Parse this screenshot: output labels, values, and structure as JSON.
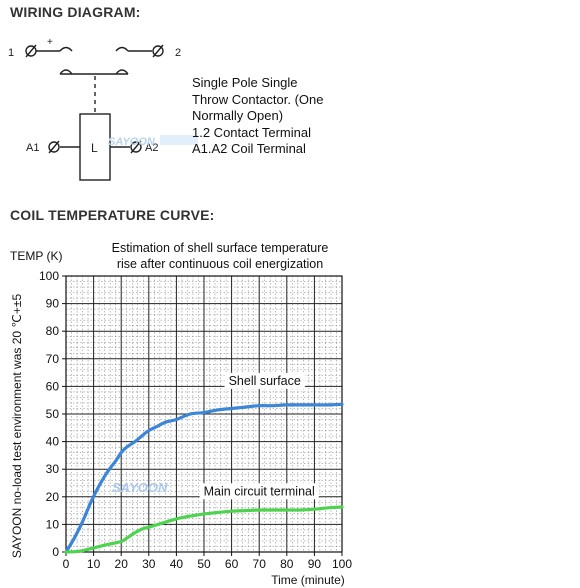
{
  "wiring": {
    "heading": "WIRING DIAGRAM:",
    "terminal_1": "1",
    "terminal_2": "2",
    "plus": "+",
    "coil_label": "L",
    "coil_a1": "A1",
    "coil_a2": "A2",
    "description": [
      "Single Pole Single",
      "Throw Contactor. (One",
      "Normally Open)",
      "1.2 Contact Terminal",
      "A1.A2 Coil Terminal"
    ],
    "watermark": "SAYOON"
  },
  "curve": {
    "heading": "COIL TEMPERATURE CURVE:"
  },
  "chart_data": {
    "type": "line",
    "title": "Estimation of shell surface temperature rise after continuous coil energization",
    "title_lines": [
      "Estimation of shell surface temperature",
      "rise after continuous coil energization"
    ],
    "ylabel": "TEMP (K)",
    "xlabel": "Time (minute)",
    "side_note": "SAYOON no-load test environment was 20 ℃+±5",
    "xlim": [
      0,
      100
    ],
    "ylim": [
      0,
      100
    ],
    "xticks": [
      0,
      10,
      20,
      30,
      40,
      50,
      60,
      70,
      80,
      90,
      100
    ],
    "yticks": [
      0,
      10,
      20,
      30,
      40,
      50,
      60,
      70,
      80,
      90,
      100
    ],
    "grid": "major and minor",
    "series": [
      {
        "name": "Shell surface",
        "color": "#3b86d6",
        "x": [
          0,
          3,
          6,
          9,
          12,
          15,
          18,
          20,
          22,
          25,
          28,
          30,
          33,
          36,
          40,
          45,
          50,
          55,
          60,
          65,
          70,
          75,
          80,
          85,
          90,
          95,
          100
        ],
        "y": [
          0,
          5,
          11,
          18,
          24,
          29,
          33,
          36,
          38,
          40,
          42.5,
          44,
          45.5,
          47,
          48,
          50,
          50.5,
          51.5,
          52,
          52.5,
          53,
          53,
          53.3,
          53.3,
          53.3,
          53.3,
          53.5
        ]
      },
      {
        "name": "Main circuit terminal",
        "color": "#4ed34e",
        "x": [
          0,
          5,
          10,
          15,
          20,
          22,
          25,
          28,
          30,
          35,
          40,
          45,
          50,
          55,
          60,
          65,
          70,
          75,
          80,
          85,
          90,
          95,
          100
        ],
        "y": [
          0,
          0.3,
          1.5,
          2.7,
          3.8,
          5,
          7,
          8.5,
          9,
          10.5,
          12,
          13,
          13.8,
          14.3,
          14.8,
          15,
          15.2,
          15.2,
          15.2,
          15.2,
          15.5,
          16,
          16.3
        ]
      }
    ],
    "annotations": [
      {
        "text": "Shell surface",
        "x": 72,
        "y": 62
      },
      {
        "text": "Main circuit terminal",
        "x": 70,
        "y": 22
      }
    ],
    "watermark": "SAYOON"
  }
}
